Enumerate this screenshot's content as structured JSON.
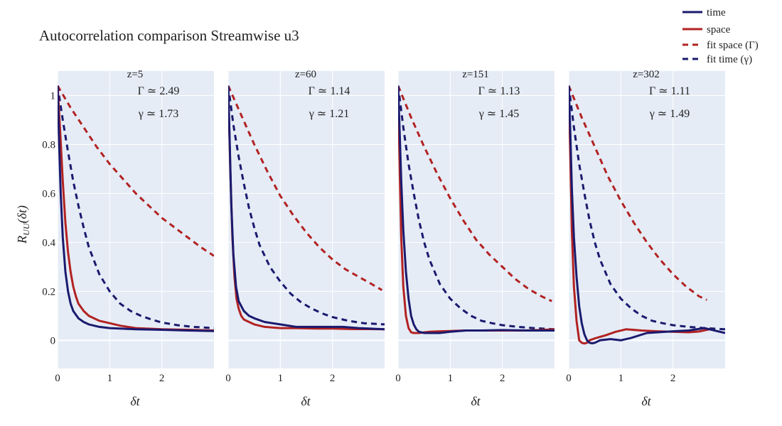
{
  "chart_data": {
    "type": "line",
    "title": "Autocorrelation comparison Streamwise u3",
    "ylabel": "R_UU(δt)",
    "ylabel_main": "R",
    "ylabel_sub": "UU",
    "ylabel_rest": "(δt)",
    "xlabel": "δt",
    "xlim": [
      0,
      3
    ],
    "ylim": [
      -0.115,
      1.1
    ],
    "xticks": [
      0,
      1,
      2
    ],
    "yticks": [
      0,
      0.2,
      0.4,
      0.6,
      0.8,
      1
    ],
    "ytick_labels": [
      "0",
      "0.2",
      "0.4",
      "0.6",
      "0.8",
      "1"
    ],
    "grid": true,
    "legend_position": "top-right",
    "legend": [
      {
        "label": "time",
        "color": "#1a1a6e",
        "dash": false
      },
      {
        "label": "space",
        "color": "#b22222",
        "dash": false
      },
      {
        "label": "fit space (Γ)",
        "color": "#b22222",
        "dash": true
      },
      {
        "label": "fit time (γ)",
        "color": "#1a1a6e",
        "dash": true
      }
    ],
    "colors": {
      "time": "#1a1a6e",
      "space": "#b22222",
      "panel_bg": "#e5ecf6",
      "grid": "#ffffff"
    },
    "panels": [
      {
        "label": "z=5",
        "gamma_cap_text": "Γ ≃ 2.49",
        "gamma_text": "γ ≃ 1.73",
        "time": {
          "x": [
            0,
            0.03,
            0.06,
            0.1,
            0.15,
            0.2,
            0.25,
            0.3,
            0.4,
            0.5,
            0.6,
            0.8,
            1.0,
            1.5,
            2.0,
            2.5,
            3.0
          ],
          "y": [
            1.04,
            0.8,
            0.6,
            0.42,
            0.28,
            0.2,
            0.15,
            0.12,
            0.09,
            0.075,
            0.065,
            0.055,
            0.05,
            0.045,
            0.043,
            0.04,
            0.038
          ]
        },
        "space": {
          "x": [
            0,
            0.05,
            0.1,
            0.15,
            0.2,
            0.25,
            0.3,
            0.35,
            0.4,
            0.5,
            0.6,
            0.8,
            1.0,
            1.2,
            1.5,
            2.0,
            2.5,
            3.0
          ],
          "y": [
            1.04,
            0.85,
            0.65,
            0.48,
            0.36,
            0.28,
            0.22,
            0.18,
            0.15,
            0.12,
            0.1,
            0.08,
            0.07,
            0.06,
            0.05,
            0.045,
            0.043,
            0.04
          ]
        },
        "fit_space": {
          "x": [
            0,
            0.25,
            0.5,
            0.75,
            1.0,
            1.25,
            1.5,
            1.75,
            2.0,
            2.25,
            2.5,
            2.75,
            3.0
          ],
          "y": [
            1.04,
            0.95,
            0.87,
            0.79,
            0.72,
            0.66,
            0.6,
            0.55,
            0.5,
            0.46,
            0.42,
            0.38,
            0.345
          ]
        },
        "fit_time": {
          "x": [
            0,
            0.1,
            0.2,
            0.3,
            0.4,
            0.5,
            0.6,
            0.8,
            1.0,
            1.2,
            1.4,
            1.6,
            1.8,
            2.0,
            2.3,
            2.6,
            3.0
          ],
          "y": [
            1.04,
            0.9,
            0.77,
            0.65,
            0.55,
            0.46,
            0.38,
            0.27,
            0.2,
            0.15,
            0.12,
            0.1,
            0.085,
            0.073,
            0.062,
            0.055,
            0.05
          ]
        }
      },
      {
        "label": "z=60",
        "gamma_cap_text": "Γ ≃ 1.14",
        "gamma_text": "γ ≃ 1.21",
        "time": {
          "x": [
            0,
            0.03,
            0.06,
            0.1,
            0.15,
            0.2,
            0.3,
            0.4,
            0.5,
            0.7,
            1.0,
            1.3,
            1.6,
            2.0,
            2.2,
            2.5,
            3.0
          ],
          "y": [
            1.04,
            0.8,
            0.55,
            0.35,
            0.22,
            0.16,
            0.12,
            0.1,
            0.09,
            0.075,
            0.065,
            0.055,
            0.055,
            0.055,
            0.055,
            0.05,
            0.045
          ]
        },
        "space": {
          "x": [
            0,
            0.04,
            0.08,
            0.12,
            0.16,
            0.2,
            0.25,
            0.3,
            0.4,
            0.5,
            0.7,
            1.0,
            1.3,
            1.7,
            2.0,
            2.4,
            2.7,
            3.0
          ],
          "y": [
            1.04,
            0.7,
            0.42,
            0.26,
            0.17,
            0.13,
            0.1,
            0.085,
            0.075,
            0.065,
            0.055,
            0.05,
            0.05,
            0.048,
            0.048,
            0.046,
            0.046,
            0.045
          ]
        },
        "fit_space": {
          "x": [
            0,
            0.25,
            0.5,
            0.75,
            1.0,
            1.25,
            1.5,
            1.75,
            2.0,
            2.25,
            2.5,
            2.75,
            2.95
          ],
          "y": [
            1.04,
            0.92,
            0.8,
            0.69,
            0.59,
            0.51,
            0.44,
            0.38,
            0.33,
            0.29,
            0.26,
            0.23,
            0.205
          ]
        },
        "fit_time": {
          "x": [
            0,
            0.1,
            0.2,
            0.3,
            0.4,
            0.5,
            0.6,
            0.8,
            1.0,
            1.2,
            1.4,
            1.6,
            1.8,
            2.0,
            2.3,
            2.6,
            3.0
          ],
          "y": [
            1.04,
            0.88,
            0.75,
            0.64,
            0.54,
            0.46,
            0.39,
            0.3,
            0.24,
            0.19,
            0.155,
            0.13,
            0.11,
            0.095,
            0.08,
            0.07,
            0.065
          ]
        }
      },
      {
        "label": "z=151",
        "gamma_cap_text": "Γ ≃ 1.13",
        "gamma_text": "γ ≃ 1.45",
        "time": {
          "x": [
            0,
            0.03,
            0.06,
            0.1,
            0.15,
            0.2,
            0.25,
            0.3,
            0.35,
            0.4,
            0.5,
            0.6,
            0.8,
            1.0,
            1.3,
            1.6,
            2.0,
            2.5,
            3.0
          ],
          "y": [
            1.04,
            0.85,
            0.65,
            0.45,
            0.28,
            0.17,
            0.1,
            0.065,
            0.045,
            0.035,
            0.03,
            0.03,
            0.03,
            0.035,
            0.04,
            0.04,
            0.042,
            0.04,
            0.04
          ]
        },
        "space": {
          "x": [
            0,
            0.03,
            0.06,
            0.1,
            0.15,
            0.2,
            0.25,
            0.3,
            0.4,
            0.6,
            0.8,
            1.0,
            1.3,
            1.6,
            2.0,
            2.4,
            2.7,
            3.0
          ],
          "y": [
            1.04,
            0.7,
            0.42,
            0.22,
            0.1,
            0.05,
            0.033,
            0.03,
            0.03,
            0.035,
            0.037,
            0.038,
            0.04,
            0.04,
            0.04,
            0.04,
            0.042,
            0.045
          ]
        },
        "fit_space": {
          "x": [
            0,
            0.25,
            0.5,
            0.75,
            1.0,
            1.25,
            1.5,
            1.75,
            2.0,
            2.25,
            2.5,
            2.75,
            2.95
          ],
          "y": [
            1.04,
            0.91,
            0.79,
            0.68,
            0.58,
            0.49,
            0.41,
            0.35,
            0.3,
            0.25,
            0.21,
            0.18,
            0.16
          ]
        },
        "fit_time": {
          "x": [
            0,
            0.1,
            0.2,
            0.3,
            0.4,
            0.5,
            0.6,
            0.8,
            1.0,
            1.2,
            1.4,
            1.6,
            1.8,
            2.0,
            2.3,
            2.6,
            3.0
          ],
          "y": [
            1.04,
            0.87,
            0.72,
            0.6,
            0.49,
            0.4,
            0.33,
            0.23,
            0.17,
            0.13,
            0.1,
            0.08,
            0.07,
            0.062,
            0.055,
            0.05,
            0.045
          ]
        }
      },
      {
        "label": "z=302",
        "gamma_cap_text": "Γ ≃ 1.11",
        "gamma_text": "γ ≃ 1.49",
        "time": {
          "x": [
            0,
            0.03,
            0.06,
            0.1,
            0.15,
            0.2,
            0.25,
            0.3,
            0.35,
            0.4,
            0.45,
            0.5,
            0.6,
            0.8,
            1.0,
            1.2,
            1.5,
            2.0,
            2.3,
            2.6,
            3.0
          ],
          "y": [
            1.04,
            0.85,
            0.62,
            0.42,
            0.26,
            0.14,
            0.07,
            0.025,
            0.0,
            -0.01,
            -0.012,
            -0.01,
            0.0,
            0.005,
            0.0,
            0.01,
            0.03,
            0.037,
            0.04,
            0.05,
            0.03
          ]
        },
        "space": {
          "x": [
            0,
            0.03,
            0.06,
            0.1,
            0.15,
            0.2,
            0.25,
            0.3,
            0.35,
            0.4,
            0.5,
            0.7,
            0.9,
            1.1,
            1.4,
            1.7,
            2.0,
            2.3,
            2.5,
            2.7
          ],
          "y": [
            1.04,
            0.75,
            0.45,
            0.22,
            0.08,
            0.0,
            -0.01,
            -0.013,
            -0.01,
            0.0,
            0.008,
            0.02,
            0.035,
            0.045,
            0.04,
            0.037,
            0.035,
            0.033,
            0.036,
            0.045
          ]
        },
        "fit_space": {
          "x": [
            0,
            0.25,
            0.5,
            0.75,
            1.0,
            1.25,
            1.5,
            1.75,
            2.0,
            2.25,
            2.5,
            2.65
          ],
          "y": [
            1.04,
            0.91,
            0.79,
            0.67,
            0.57,
            0.48,
            0.4,
            0.33,
            0.27,
            0.22,
            0.18,
            0.165
          ]
        },
        "fit_time": {
          "x": [
            0,
            0.1,
            0.2,
            0.3,
            0.4,
            0.5,
            0.6,
            0.8,
            1.0,
            1.2,
            1.4,
            1.6,
            1.8,
            2.0,
            2.3,
            2.6,
            3.0
          ],
          "y": [
            1.04,
            0.87,
            0.72,
            0.6,
            0.49,
            0.4,
            0.33,
            0.23,
            0.17,
            0.13,
            0.1,
            0.08,
            0.07,
            0.062,
            0.055,
            0.05,
            0.045
          ]
        }
      }
    ]
  }
}
